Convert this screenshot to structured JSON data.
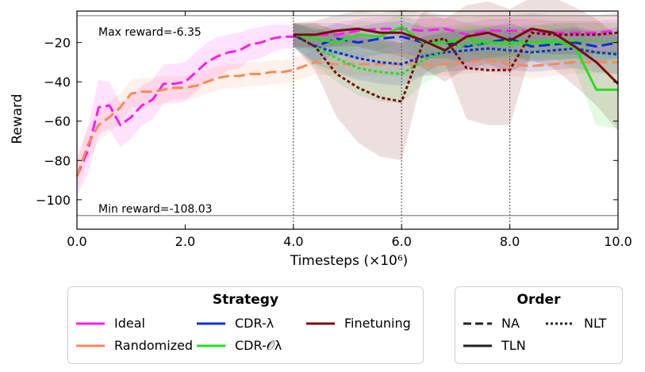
{
  "chart_data": {
    "type": "line",
    "xlabel": "Timesteps (×10⁶)",
    "ylabel": "Reward",
    "xlim": [
      0,
      10
    ],
    "ylim": [
      -115,
      -4
    ],
    "x_ticks": [
      0,
      2,
      4,
      6,
      8,
      10
    ],
    "x_tick_labels": [
      "0.0",
      "2.0",
      "4.0",
      "6.0",
      "8.0",
      "10.0"
    ],
    "y_ticks": [
      -20,
      -40,
      -60,
      -80,
      -100
    ],
    "y_tick_labels": [
      "−20",
      "−40",
      "−60",
      "−80",
      "−100"
    ],
    "reference_lines": [
      {
        "label": "Max reward=-6.35",
        "value": -6.35
      },
      {
        "label": "Min reward=-108.03",
        "value": -108.03
      }
    ],
    "task_boundaries": [
      4,
      6,
      8
    ],
    "series": [
      {
        "name": "Ideal",
        "strategy": "Ideal",
        "order": "NA",
        "color": "#ff1cf0",
        "x": [
          0,
          0.2,
          0.4,
          0.6,
          0.8,
          1.0,
          1.2,
          1.4,
          1.6,
          1.8,
          2.0,
          2.2,
          2.4,
          2.6,
          2.8,
          3.0,
          3.2,
          3.4,
          3.6,
          3.8,
          4.0,
          4.4,
          4.8,
          5.2,
          5.6,
          6.0,
          6.4,
          6.8,
          7.2,
          7.6,
          8.0,
          8.4,
          8.8,
          9.2,
          9.6,
          10.0
        ],
        "y": [
          -88,
          -75,
          -53,
          -52,
          -62,
          -58,
          -52,
          -49,
          -41,
          -41,
          -40,
          -35,
          -30,
          -27,
          -25,
          -24,
          -21,
          -20,
          -18,
          -17,
          -17,
          -16,
          -16,
          -14,
          -13,
          -13,
          -14,
          -13,
          -16,
          -14,
          -14,
          -14,
          -15,
          -15,
          -15,
          -14
        ],
        "band": [
          10,
          12,
          14,
          12,
          11,
          11,
          10,
          10,
          10,
          10,
          10,
          10,
          10,
          10,
          9,
          9,
          8,
          8,
          7,
          6,
          6,
          6,
          6,
          6,
          6,
          6,
          6,
          6,
          6,
          6,
          6,
          6,
          6,
          6,
          6,
          6
        ]
      },
      {
        "name": "Randomized",
        "strategy": "Randomized",
        "order": "NA",
        "color": "#f58a5a",
        "x": [
          0,
          0.2,
          0.4,
          0.6,
          0.8,
          1.0,
          1.2,
          1.4,
          1.6,
          1.8,
          2.0,
          2.2,
          2.4,
          2.6,
          2.8,
          3.0,
          3.2,
          3.4,
          3.6,
          3.8,
          4.0,
          4.4,
          4.8,
          5.2,
          5.6,
          6.0,
          6.4,
          6.8,
          7.2,
          7.6,
          8.0,
          8.4,
          8.8,
          9.2,
          9.6,
          10.0
        ],
        "y": [
          -88,
          -72,
          -62,
          -58,
          -53,
          -46,
          -45,
          -45,
          -44,
          -43,
          -43,
          -42,
          -40,
          -38,
          -37,
          -37,
          -36,
          -36,
          -35,
          -35,
          -34,
          -30,
          -31,
          -31,
          -31,
          -31,
          -31,
          -31,
          -30,
          -29,
          -31,
          -32,
          -31,
          -30,
          -30,
          -30
        ],
        "band": [
          8,
          8,
          8,
          8,
          7,
          7,
          7,
          7,
          7,
          6,
          6,
          6,
          6,
          6,
          6,
          6,
          6,
          6,
          6,
          6,
          6,
          6,
          6,
          6,
          6,
          6,
          6,
          6,
          6,
          6,
          6,
          6,
          6,
          6,
          6,
          6
        ]
      },
      {
        "name": "CDR-λ (NA)",
        "strategy": "CDR-λ",
        "order": "NA",
        "color": "#0a2fdc",
        "x": [
          4.0,
          4.4,
          4.8,
          5.2,
          5.6,
          6.0,
          6.4,
          6.8,
          7.2,
          7.6,
          8.0,
          8.4,
          8.8,
          9.2,
          9.6,
          10.0
        ],
        "y": [
          -16,
          -22,
          -18,
          -20,
          -18,
          -17,
          -20,
          -20,
          -22,
          -20,
          -18,
          -22,
          -21,
          -20,
          -22,
          -20
        ],
        "band": [
          6,
          8,
          8,
          8,
          8,
          8,
          8,
          8,
          8,
          8,
          8,
          8,
          8,
          8,
          8,
          8
        ]
      },
      {
        "name": "CDR-λ (NLT)",
        "strategy": "CDR-λ",
        "order": "NLT",
        "color": "#0a2fdc",
        "x": [
          4.0,
          4.4,
          4.8,
          5.2,
          5.6,
          6.0,
          6.4,
          6.8,
          7.2,
          7.6,
          8.0,
          8.4,
          8.8,
          9.2,
          9.6,
          10.0
        ],
        "y": [
          -16,
          -22,
          -25,
          -28,
          -30,
          -31,
          -27,
          -25,
          -24,
          -23,
          -24,
          -25,
          -24,
          -23,
          -25,
          -26
        ],
        "band": [
          6,
          9,
          10,
          11,
          11,
          11,
          10,
          10,
          10,
          10,
          10,
          10,
          10,
          10,
          10,
          10
        ]
      },
      {
        "name": "CDR-Oλ (TLN)",
        "strategy": "CDR-Oλ",
        "order": "TLN",
        "color": "#22e01e",
        "x": [
          4.0,
          4.4,
          4.8,
          5.2,
          5.6,
          6.0,
          6.4,
          6.8,
          7.2,
          7.6,
          8.0,
          8.4,
          8.8,
          9.2,
          9.6,
          10.0
        ],
        "y": [
          -16,
          -18,
          -20,
          -16,
          -17,
          -12,
          -20,
          -20,
          -18,
          -20,
          -20,
          -20,
          -19,
          -22,
          -44,
          -44
        ],
        "band": [
          6,
          7,
          7,
          7,
          7,
          7,
          8,
          8,
          8,
          8,
          8,
          8,
          9,
          12,
          18,
          20
        ]
      },
      {
        "name": "CDR-Oλ (NLT)",
        "strategy": "CDR-Oλ",
        "order": "NLT",
        "color": "#22e01e",
        "x": [
          4.0,
          4.4,
          4.8,
          5.2,
          5.6,
          6.0,
          6.4,
          6.8,
          7.2,
          7.6,
          8.0,
          8.4,
          8.8,
          9.2,
          9.6,
          10.0
        ],
        "y": [
          -16,
          -22,
          -28,
          -33,
          -35,
          -36,
          -29,
          -24,
          -21,
          -20,
          -21,
          -20,
          -20,
          -19,
          -19,
          -19
        ],
        "band": [
          6,
          10,
          12,
          14,
          15,
          15,
          12,
          10,
          9,
          9,
          9,
          9,
          9,
          9,
          9,
          9
        ]
      },
      {
        "name": "Finetuning (TLN)",
        "strategy": "Finetuning",
        "order": "TLN",
        "color": "#7a0b0b",
        "x": [
          4.0,
          4.4,
          4.8,
          5.2,
          5.6,
          6.0,
          6.4,
          6.8,
          7.2,
          7.6,
          8.0,
          8.4,
          8.8,
          9.2,
          9.6,
          10.0
        ],
        "y": [
          -16,
          -16,
          -14,
          -13,
          -15,
          -15,
          -19,
          -24,
          -17,
          -15,
          -19,
          -13,
          -15,
          -22,
          -30,
          -41
        ],
        "band": [
          6,
          7,
          8,
          9,
          10,
          12,
          14,
          16,
          16,
          16,
          16,
          16,
          18,
          20,
          22,
          24
        ]
      },
      {
        "name": "Finetuning (NLT)",
        "strategy": "Finetuning",
        "order": "NLT",
        "color": "#7a0b0b",
        "x": [
          4.0,
          4.4,
          4.8,
          5.2,
          5.6,
          6.0,
          6.4,
          6.8,
          7.2,
          7.6,
          8.0,
          8.4,
          8.8,
          9.2,
          9.6,
          10.0
        ],
        "y": [
          -16,
          -22,
          -36,
          -43,
          -48,
          -50,
          -20,
          -18,
          -33,
          -34,
          -34,
          -15,
          -16,
          -16,
          -16,
          -15
        ],
        "band": [
          6,
          12,
          22,
          28,
          30,
          30,
          16,
          12,
          26,
          28,
          28,
          10,
          10,
          10,
          10,
          10
        ]
      }
    ]
  },
  "legend_strategy": {
    "title": "Strategy",
    "items": [
      {
        "label": "Ideal",
        "color": "#ff1cf0"
      },
      {
        "label": "Randomized",
        "color": "#f58a5a"
      },
      {
        "label": "CDR-λ",
        "color": "#0a2fdc"
      },
      {
        "label": "CDR-𝒪λ",
        "color": "#22e01e"
      },
      {
        "label": "Finetuning",
        "color": "#7a0b0b"
      }
    ]
  },
  "legend_order": {
    "title": "Order",
    "items": [
      {
        "label": "NA",
        "style": "dashed"
      },
      {
        "label": "NLT",
        "style": "dotted"
      },
      {
        "label": "TLN",
        "style": "solid"
      }
    ]
  }
}
